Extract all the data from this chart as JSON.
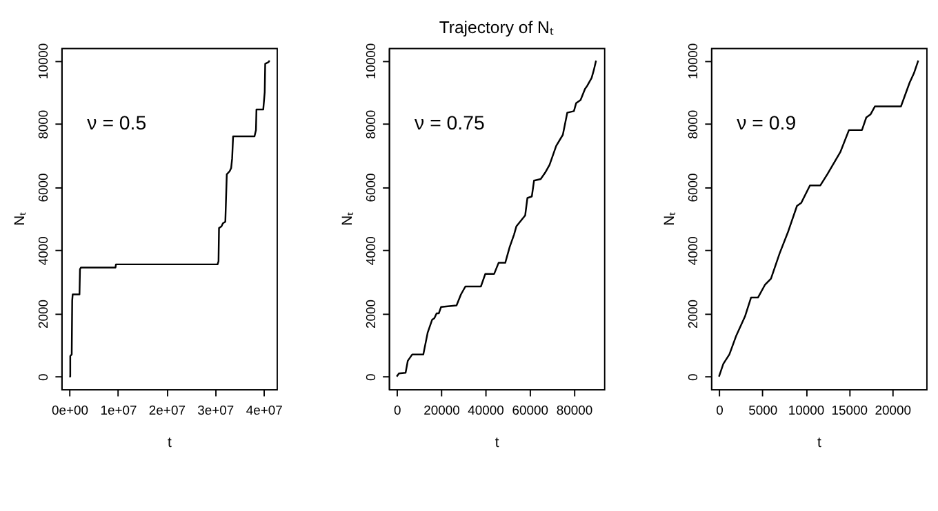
{
  "chart_data": [
    {
      "type": "line",
      "xlabel": "t",
      "ylabel": "Nₜ",
      "annotations": [
        "ν = 0.5"
      ],
      "grid": false,
      "marker": "none",
      "xlim": [
        -1640000,
        42640000
      ],
      "ylim": [
        -400,
        10400
      ],
      "xticks": [
        {
          "value": 0,
          "label": "0e+00"
        },
        {
          "value": 10000000,
          "label": "1e+07"
        },
        {
          "value": 20000000,
          "label": "2e+07"
        },
        {
          "value": 30000000,
          "label": "3e+07"
        },
        {
          "value": 40000000,
          "label": "4e+07"
        }
      ],
      "yticks": [
        0,
        2000,
        4000,
        6000,
        8000,
        10000
      ],
      "series": [
        {
          "color": "#000000",
          "x": [
            0,
            200000,
            200000,
            500000,
            600000,
            700000,
            2100000,
            2200000,
            2400000,
            9500000,
            9600000,
            30500000,
            30700000,
            30800000,
            31300000,
            31600000,
            32100000,
            32300000,
            32400000,
            33000000,
            33300000,
            33500000,
            33700000,
            38100000,
            38400000,
            38500000,
            39900000,
            40200000,
            40300000,
            41000000,
            41200000
          ],
          "values": [
            0,
            0,
            650,
            700,
            2400,
            2600,
            2600,
            3400,
            3450,
            3450,
            3550,
            3550,
            3650,
            4700,
            4750,
            4850,
            4900,
            5900,
            6400,
            6500,
            6600,
            6900,
            7600,
            7600,
            7800,
            8450,
            8450,
            9000,
            9900,
            9950,
            10000
          ]
        }
      ]
    },
    {
      "type": "line",
      "title": "Trajectory of Nₜ",
      "xlabel": "t",
      "ylabel": "Nₜ",
      "annotations": [
        "ν = 0.75"
      ],
      "grid": false,
      "marker": "none",
      "xlim": [
        -3600,
        93600
      ],
      "ylim": [
        -400,
        10400
      ],
      "xticks": [
        0,
        20000,
        40000,
        60000,
        80000
      ],
      "yticks": [
        0,
        2000,
        4000,
        6000,
        8000,
        10000
      ],
      "series": [
        {
          "color": "#000000",
          "x": [
            0,
            1000,
            4000,
            5000,
            7000,
            12000,
            14000,
            16000,
            17000,
            18000,
            19000,
            20000,
            27000,
            29000,
            31000,
            38000,
            40000,
            44000,
            46000,
            49000,
            51000,
            53000,
            54000,
            58000,
            59000,
            61000,
            62000,
            65000,
            67000,
            69000,
            72000,
            75000,
            77000,
            80000,
            81000,
            83000,
            85000,
            86000,
            88000,
            89000,
            90000
          ],
          "values": [
            0,
            100,
            120,
            500,
            700,
            700,
            1400,
            1800,
            1850,
            2000,
            2000,
            2200,
            2250,
            2600,
            2850,
            2850,
            3250,
            3250,
            3600,
            3600,
            4100,
            4500,
            4750,
            5100,
            5650,
            5700,
            6200,
            6250,
            6450,
            6700,
            7300,
            7650,
            8350,
            8400,
            8650,
            8750,
            9100,
            9200,
            9450,
            9700,
            10000
          ]
        }
      ]
    },
    {
      "type": "line",
      "xlabel": "t",
      "ylabel": "Nₜ",
      "annotations": [
        "ν = 0.9"
      ],
      "grid": false,
      "marker": "none",
      "xlim": [
        -920,
        23920
      ],
      "ylim": [
        -400,
        10400
      ],
      "xticks": [
        0,
        5000,
        10000,
        15000,
        20000
      ],
      "yticks": [
        0,
        2000,
        4000,
        6000,
        8000,
        10000
      ],
      "series": [
        {
          "color": "#000000",
          "x": [
            0,
            500,
            1200,
            2000,
            3000,
            3700,
            4500,
            5300,
            6000,
            7000,
            8000,
            9000,
            9500,
            10500,
            11700,
            12500,
            14000,
            15000,
            16500,
            17000,
            17500,
            18000,
            21000,
            22000,
            22500,
            23000
          ],
          "values": [
            0,
            400,
            700,
            1300,
            1900,
            2500,
            2500,
            2900,
            3100,
            3900,
            4600,
            5400,
            5500,
            6050,
            6050,
            6400,
            7100,
            7800,
            7800,
            8200,
            8300,
            8550,
            8550,
            9300,
            9600,
            10000
          ]
        }
      ]
    }
  ]
}
